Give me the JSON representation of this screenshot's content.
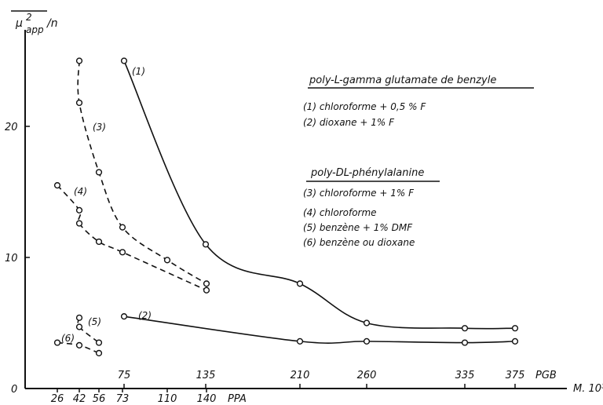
{
  "chart_data": {
    "type": "scatter",
    "title": "",
    "ylabel": "μ²app / n",
    "xlabel": "M. 10³",
    "ylim": [
      0,
      26
    ],
    "yticks": [
      0,
      10,
      20
    ],
    "grid": false,
    "x_axis_pgb": {
      "label": "PGB",
      "ticks": [
        75,
        135,
        210,
        260,
        335,
        375
      ]
    },
    "x_axis_ppa": {
      "label": "PPA",
      "ticks": [
        26,
        42,
        56,
        73,
        110,
        140
      ]
    },
    "legend": {
      "group1_title": "poly-L-gamma glutamate de benzyle",
      "group1_items": [
        "(1) chloroforme + 0,5 % F",
        "(2) dioxane + 1% F"
      ],
      "group2_title": "poly-DL-phénylalanine",
      "group2_items": [
        "(3) chloroforme + 1% F",
        "(4) chloroforme",
        "(5) benzène + 1% DMF",
        "(6) benzène ou dioxane"
      ]
    },
    "series": [
      {
        "name": "(1)",
        "axis": "PGB",
        "line": "solid",
        "x": [
          75,
          135,
          210,
          260,
          335,
          375
        ],
        "y": [
          25,
          11,
          8,
          5,
          4.6,
          4.6
        ]
      },
      {
        "name": "(2)",
        "axis": "PGB",
        "line": "solid",
        "x": [
          75,
          210,
          260,
          335,
          375
        ],
        "y": [
          5.5,
          3.6,
          3.6,
          3.5,
          3.6
        ]
      },
      {
        "name": "(3)",
        "axis": "PPA",
        "line": "dashed",
        "x": [
          42,
          42,
          56,
          73,
          110,
          140
        ],
        "y": [
          25,
          21.8,
          16.5,
          12.3,
          9.8,
          8
        ]
      },
      {
        "name": "(4)",
        "axis": "PPA",
        "line": "dashed",
        "x": [
          26,
          42,
          42,
          56,
          73,
          140
        ],
        "y": [
          15.5,
          13.6,
          12.6,
          11.2,
          10.4,
          7.5
        ]
      },
      {
        "name": "(5)",
        "axis": "PPA",
        "line": "dashed",
        "x": [
          42,
          42,
          56
        ],
        "y": [
          5.4,
          4.7,
          3.5
        ]
      },
      {
        "name": "(6)",
        "axis": "PPA",
        "line": "dashed",
        "x": [
          26,
          42,
          56
        ],
        "y": [
          3.5,
          3.3,
          2.7
        ]
      }
    ]
  }
}
